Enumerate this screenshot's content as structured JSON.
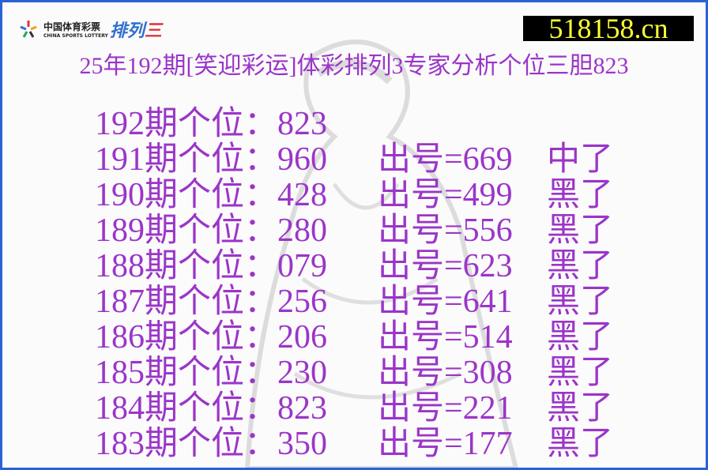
{
  "logo": {
    "cn": "中国体育彩票",
    "en": "CHINA SPORTS LOTTERY",
    "product_a": "排列",
    "product_b": "三"
  },
  "site": "518158.cn",
  "title": "25年192期[笑迎彩运]体彩排列3专家分析个位三胆823",
  "colors": {
    "text": "#9b35c8",
    "border": "#2a62d6",
    "site_bg": "#000000",
    "site_text": "#ffff33"
  },
  "rows": [
    {
      "pred": "192期个位：823",
      "draw": "",
      "result": ""
    },
    {
      "pred": "191期个位：960",
      "draw": "出号=669",
      "result": "中了"
    },
    {
      "pred": "190期个位：428",
      "draw": "出号=499",
      "result": "黑了"
    },
    {
      "pred": "189期个位：280",
      "draw": "出号=556",
      "result": "黑了"
    },
    {
      "pred": "188期个位：079",
      "draw": "出号=623",
      "result": "黑了"
    },
    {
      "pred": "187期个位：256",
      "draw": "出号=641",
      "result": "黑了"
    },
    {
      "pred": "186期个位：206",
      "draw": "出号=514",
      "result": "黑了"
    },
    {
      "pred": "185期个位：230",
      "draw": "出号=308",
      "result": "黑了"
    },
    {
      "pred": "184期个位：823",
      "draw": "出号=221",
      "result": "黑了"
    },
    {
      "pred": "183期个位：350",
      "draw": "出号=177",
      "result": "黑了"
    }
  ]
}
